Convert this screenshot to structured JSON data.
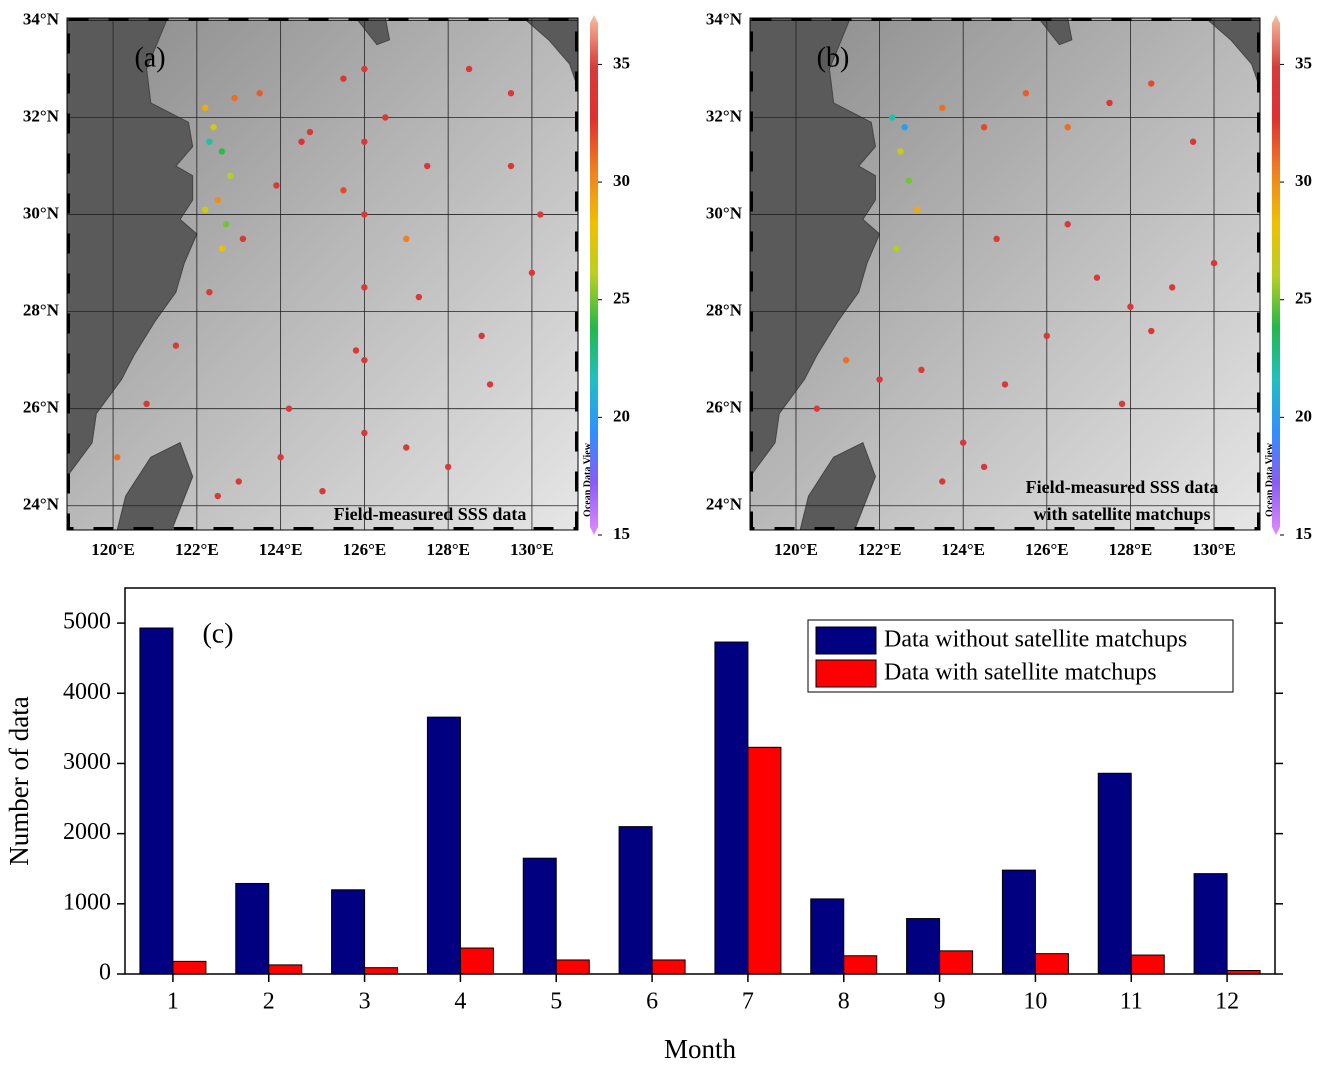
{
  "chart_data": [
    {
      "type": "map",
      "label": "(a)",
      "annotation": [
        "Field-measured SSS data"
      ],
      "watermark": "Ocean Data View",
      "xlim": [
        118.9,
        131.1
      ],
      "ylim": [
        23.5,
        34.05
      ],
      "xticks": [
        {
          "value": 120,
          "label": "120°E"
        },
        {
          "value": 122,
          "label": "122°E"
        },
        {
          "value": 124,
          "label": "124°E"
        },
        {
          "value": 126,
          "label": "126°E"
        },
        {
          "value": 128,
          "label": "128°E"
        },
        {
          "value": 130,
          "label": "130°E"
        }
      ],
      "yticks": [
        {
          "value": 24,
          "label": "24°N"
        },
        {
          "value": 26,
          "label": "26°N"
        },
        {
          "value": 28,
          "label": "28°N"
        },
        {
          "value": 30,
          "label": "30°N"
        },
        {
          "value": 32,
          "label": "32°N"
        },
        {
          "value": 34,
          "label": "34°N"
        }
      ],
      "colorbar": {
        "lim": [
          15,
          37.1
        ],
        "ticks": [
          15,
          20,
          25,
          30,
          35
        ],
        "colors": [
          "#e28bff",
          "#8a5cf5",
          "#2f8fff",
          "#20c0c0",
          "#22b84a",
          "#b8d020",
          "#f0c000",
          "#f08020",
          "#e03030",
          "#d83a3a",
          "#f6c0a0"
        ]
      },
      "points": {
        "x": [
          120.1,
          120.8,
          121.5,
          122.3,
          123.1,
          123.9,
          124.7,
          125.5,
          126,
          126,
          126,
          126,
          126,
          126,
          122.2,
          122.4,
          122.6,
          122.8,
          122.5,
          122.7,
          122.3,
          122.9,
          122.2,
          122.6,
          123.5,
          124.5,
          125.5,
          126.5,
          127.5,
          128.5,
          129.5,
          130.2,
          123,
          124,
          125,
          127,
          128,
          129,
          122.5,
          124.2,
          125.8,
          127.3,
          128.8,
          130,
          127,
          129.5
        ],
        "y": [
          25,
          26.1,
          27.3,
          28.4,
          29.5,
          30.6,
          31.7,
          32.8,
          33,
          31.5,
          30,
          28.5,
          27,
          25.5,
          32.2,
          31.8,
          31.3,
          30.8,
          30.3,
          29.8,
          31.5,
          32.4,
          30.1,
          29.3,
          32.5,
          31.5,
          30.5,
          32,
          31,
          33,
          32.5,
          30,
          24.5,
          25,
          24.3,
          25.2,
          24.8,
          26.5,
          24.2,
          26,
          27.2,
          28.3,
          27.5,
          28.8,
          29.5,
          31
        ],
        "values": [
          31,
          34.5,
          34.6,
          34.5,
          34.5,
          34.6,
          34.5,
          34,
          34.6,
          34.6,
          34.5,
          34.6,
          34.6,
          34.5,
          29,
          27,
          24,
          26,
          30,
          25,
          22,
          31,
          27,
          28,
          31.5,
          33,
          32,
          34.4,
          34.5,
          34,
          34.5,
          34.6,
          34.6,
          34.6,
          34.5,
          34.6,
          34.6,
          34.6,
          34.5,
          34.6,
          34.6,
          34.6,
          34.5,
          34.6,
          30.5,
          34.5
        ]
      }
    },
    {
      "type": "map",
      "label": "(b)",
      "annotation": [
        "Field-measured SSS data",
        "with satellite matchups"
      ],
      "watermark": "Ocean Data View",
      "xlim": [
        118.9,
        131.1
      ],
      "ylim": [
        23.5,
        34.05
      ],
      "xticks": [
        {
          "value": 120,
          "label": "120°E"
        },
        {
          "value": 122,
          "label": "122°E"
        },
        {
          "value": 124,
          "label": "124°E"
        },
        {
          "value": 126,
          "label": "126°E"
        },
        {
          "value": 128,
          "label": "128°E"
        },
        {
          "value": 130,
          "label": "130°E"
        }
      ],
      "yticks": [
        {
          "value": 24,
          "label": "24°N"
        },
        {
          "value": 26,
          "label": "26°N"
        },
        {
          "value": 28,
          "label": "28°N"
        },
        {
          "value": 30,
          "label": "30°N"
        },
        {
          "value": 32,
          "label": "32°N"
        },
        {
          "value": 34,
          "label": "34°N"
        }
      ],
      "colorbar": {
        "lim": [
          15,
          37.1
        ],
        "ticks": [
          15,
          20,
          25,
          30,
          35
        ],
        "colors": [
          "#e28bff",
          "#8a5cf5",
          "#2f8fff",
          "#20c0c0",
          "#22b84a",
          "#b8d020",
          "#f0c000",
          "#f08020",
          "#e03030",
          "#d83a3a",
          "#f6c0a0"
        ]
      },
      "points": {
        "x": [
          122.3,
          122.5,
          122.7,
          122.9,
          122.4,
          122.6,
          123.5,
          124.5,
          125.5,
          126.5,
          127.5,
          128.5,
          129.5,
          130,
          127.2,
          128,
          128.5,
          129,
          127.8,
          125,
          124,
          123.5,
          124.5,
          123,
          126,
          121.2,
          122,
          120.5,
          126.5,
          124.8
        ],
        "y": [
          32,
          31.3,
          30.7,
          30.1,
          29.3,
          31.8,
          32.2,
          31.8,
          32.5,
          31.8,
          32.3,
          32.7,
          31.5,
          29,
          28.7,
          28.1,
          27.6,
          28.5,
          26.1,
          26.5,
          25.3,
          24.5,
          24.8,
          26.8,
          27.5,
          27,
          26.6,
          26,
          29.8,
          29.5
        ],
        "values": [
          22,
          27,
          25,
          29,
          26,
          20,
          31,
          32,
          31.5,
          31,
          34,
          32,
          34.5,
          34.5,
          34.6,
          34.5,
          34.6,
          34.5,
          34.6,
          34.6,
          34.5,
          34.6,
          34.5,
          34.6,
          34.5,
          31,
          34.6,
          34.6,
          34.5,
          34.6
        ]
      }
    },
    {
      "type": "bar",
      "label": "(c)",
      "xlabel": "Month",
      "ylabel": "Number of data",
      "categories": [
        "1",
        "2",
        "3",
        "4",
        "5",
        "6",
        "7",
        "8",
        "9",
        "10",
        "11",
        "12"
      ],
      "ylim": [
        0,
        5500
      ],
      "yticks": [
        0,
        1000,
        2000,
        3000,
        4000,
        5000
      ],
      "legend": "upper right",
      "series": [
        {
          "name": "Data without satellite matchups",
          "color": "#000080",
          "values": [
            4930,
            1290,
            1200,
            3660,
            1650,
            2100,
            4730,
            1070,
            790,
            1480,
            2860,
            1430
          ]
        },
        {
          "name": "Data with satellite matchups",
          "color": "#ff0000",
          "values": [
            180,
            130,
            90,
            370,
            200,
            200,
            3230,
            260,
            330,
            290,
            270,
            50
          ]
        }
      ]
    }
  ]
}
